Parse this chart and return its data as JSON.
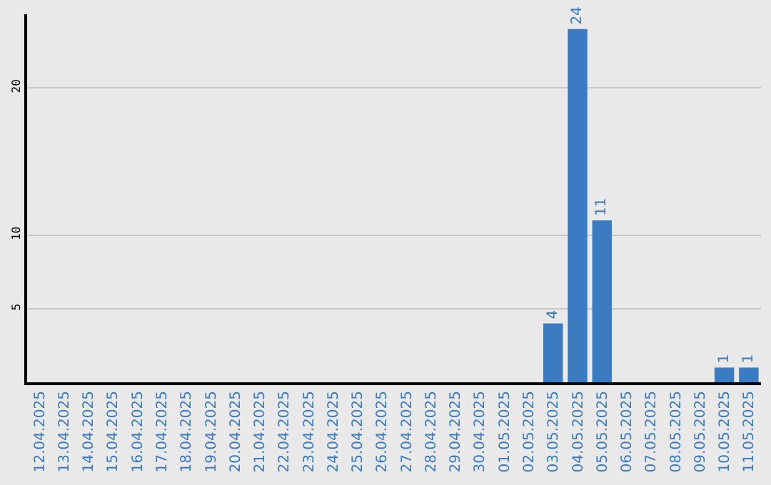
{
  "chart_data": {
    "type": "bar",
    "categories": [
      "12.04.2025",
      "13.04.2025",
      "14.04.2025",
      "15.04.2025",
      "16.04.2025",
      "17.04.2025",
      "18.04.2025",
      "19.04.2025",
      "20.04.2025",
      "21.04.2025",
      "22.04.2025",
      "23.04.2025",
      "24.04.2025",
      "25.04.2025",
      "26.04.2025",
      "27.04.2025",
      "28.04.2025",
      "29.04.2025",
      "30.04.2025",
      "01.05.2025",
      "02.05.2025",
      "03.05.2025",
      "04.05.2025",
      "05.05.2025",
      "06.05.2025",
      "07.05.2025",
      "08.05.2025",
      "09.05.2025",
      "10.05.2025",
      "11.05.2025"
    ],
    "values": [
      0,
      0,
      0,
      0,
      0,
      0,
      0,
      0,
      0,
      0,
      0,
      0,
      0,
      0,
      0,
      0,
      0,
      0,
      0,
      0,
      0,
      4,
      24,
      11,
      0,
      0,
      0,
      0,
      1,
      1
    ],
    "value_labels": [
      null,
      null,
      null,
      null,
      null,
      null,
      null,
      null,
      null,
      null,
      null,
      null,
      null,
      null,
      null,
      null,
      null,
      null,
      null,
      null,
      null,
      "4",
      "24",
      "11",
      null,
      null,
      null,
      null,
      "1",
      "1"
    ],
    "color": "#3a7bc2",
    "ylim": [
      0,
      25
    ],
    "yticks": [
      5,
      10,
      20
    ],
    "grid": "y",
    "legend": false
  }
}
